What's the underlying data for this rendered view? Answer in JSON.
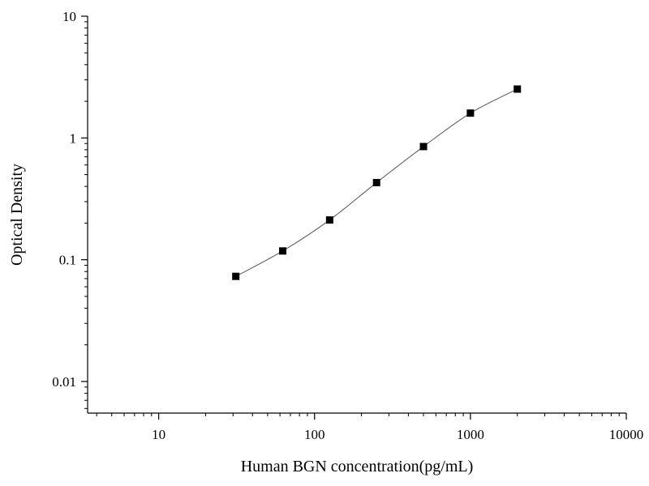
{
  "chart_data": {
    "type": "scatter",
    "xlabel": "Human BGN concentration(pg/mL)",
    "ylabel": "Optical Density",
    "x_scale": "log",
    "y_scale": "log",
    "xlim": [
      3.5,
      10000
    ],
    "ylim": [
      0.0055,
      10
    ],
    "x_ticks": [
      {
        "value": 10,
        "label": "10"
      },
      {
        "value": 100,
        "label": "100"
      },
      {
        "value": 1000,
        "label": "1000"
      },
      {
        "value": 10000,
        "label": "10000"
      }
    ],
    "y_ticks": [
      {
        "value": 0.01,
        "label": "0.01"
      },
      {
        "value": 0.1,
        "label": "0.1"
      },
      {
        "value": 1,
        "label": "1"
      },
      {
        "value": 10,
        "label": "10"
      }
    ],
    "grid": false,
    "series": [
      {
        "x": [
          31.25,
          62.5,
          125,
          250,
          500,
          1000,
          2000
        ],
        "y": [
          0.073,
          0.118,
          0.212,
          0.43,
          0.85,
          1.6,
          2.52
        ],
        "marker": "square",
        "fit_curve": true
      }
    ],
    "colors": {
      "marker": "#000000",
      "curve": "#555555",
      "axis": "#000000"
    }
  }
}
